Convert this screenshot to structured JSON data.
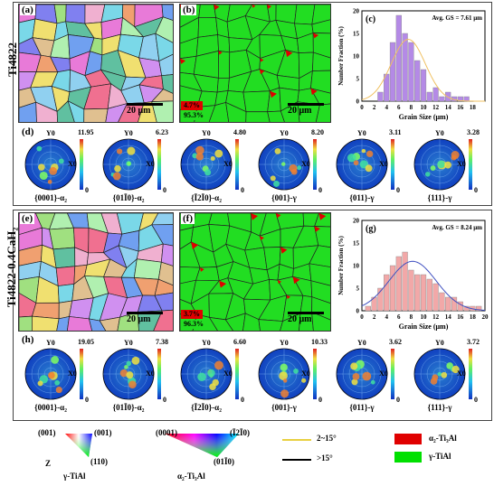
{
  "rows": [
    {
      "sample": "Ti4822",
      "panel_ipf": "(a)",
      "panel_phase": "(b)",
      "panel_hist": "(c)",
      "panel_poles": "(d)",
      "ipf_scale": "20 μm",
      "phase_scale": "20 μm",
      "alpha_fraction": "4.7%",
      "gamma_fraction": "95.3%",
      "hist_annot": "Avg. GS = 7.61 μm",
      "poles": [
        {
          "title": "{0001}-α₂",
          "max": "11.95",
          "min": "0"
        },
        {
          "title": "{01Ī0}-α₂",
          "max": "6.23",
          "min": "0"
        },
        {
          "title": "{Ī2Ī0}-α₂",
          "max": "4.80",
          "min": "0"
        },
        {
          "title": "{001}-γ",
          "max": "8.20",
          "min": "0"
        },
        {
          "title": "{011}-γ",
          "max": "3.11",
          "min": "0"
        },
        {
          "title": "{111}-γ",
          "max": "3.28",
          "min": "0"
        }
      ]
    },
    {
      "sample": "Ti4822-0.4CaH₂",
      "panel_ipf": "(e)",
      "panel_phase": "(f)",
      "panel_hist": "(g)",
      "panel_poles": "(h)",
      "ipf_scale": "20 μm",
      "phase_scale": "20 μm",
      "alpha_fraction": "3.7%",
      "gamma_fraction": "96.3%",
      "hist_annot": "Avg. GS = 8.24 μm",
      "poles": [
        {
          "title": "{0001}-α₂",
          "max": "19.05",
          "min": "0"
        },
        {
          "title": "{01Ī0}-α₂",
          "max": "7.38",
          "min": "0"
        },
        {
          "title": "{Ī2Ī0}-α₂",
          "max": "6.60",
          "min": "0"
        },
        {
          "title": "{001}-γ",
          "max": "10.33",
          "min": "0"
        },
        {
          "title": "{011}-γ",
          "max": "3.62",
          "min": "0"
        },
        {
          "title": "{111}-γ",
          "max": "3.72",
          "min": "0"
        }
      ]
    }
  ],
  "pole_axis": {
    "y": "Y0",
    "x": "X0"
  },
  "chart_data": [
    {
      "type": "bar",
      "title": "",
      "xlabel": "Grain Size (μm)",
      "ylabel": "Number Fraction (%)",
      "xlim": [
        0,
        20
      ],
      "ylim": [
        0,
        20
      ],
      "xticks": [
        0,
        2,
        4,
        6,
        8,
        10,
        12,
        14,
        16,
        18
      ],
      "yticks": [
        0,
        5,
        10,
        15,
        20
      ],
      "bin_width": 1,
      "x": [
        3,
        4,
        5,
        6,
        7,
        8,
        9,
        10,
        11,
        12,
        13,
        14,
        15,
        16,
        17
      ],
      "values": [
        2,
        6,
        13,
        19,
        15,
        13,
        9,
        7,
        2,
        3,
        1,
        2,
        1,
        1,
        1
      ],
      "fit": "gaussian",
      "bar_color": "#b48ae6",
      "fit_color": "#f0c060"
    },
    {
      "type": "bar",
      "title": "",
      "xlabel": "Grain Size (μm)",
      "ylabel": "Number Fraction (%)",
      "xlim": [
        0,
        20
      ],
      "ylim": [
        0,
        20
      ],
      "xticks": [
        0,
        2,
        4,
        6,
        8,
        10,
        12,
        14,
        16,
        18,
        20
      ],
      "yticks": [
        0,
        5,
        10,
        15,
        20
      ],
      "bin_width": 1,
      "x": [
        1,
        2,
        3,
        4,
        5,
        6,
        7,
        8,
        9,
        10,
        11,
        12,
        13,
        14,
        15,
        16,
        17,
        18,
        19
      ],
      "values": [
        1,
        3,
        5,
        8,
        10,
        12,
        13,
        9,
        8,
        8,
        7,
        6,
        4,
        3,
        3,
        2,
        1,
        1,
        1
      ],
      "fit": "gaussian",
      "bar_color": "#f2a8a8",
      "fit_color": "#4050c0"
    }
  ],
  "legend": {
    "gamma_ipf": {
      "c1": "(001)",
      "c2": "(001)",
      "c3": "(110)",
      "z": "Z",
      "label": "γ-TiAl"
    },
    "alpha_ipf": {
      "c1": "(0001)",
      "c2": "(Ī2Ī0)",
      "c3": "(01Ī0)",
      "label": "α₂-Ti₃Al"
    },
    "boundaries": [
      {
        "label": "2~15°",
        "color": "#e8d040"
      },
      {
        "label": ">15°",
        "color": "#000000"
      }
    ],
    "phases": [
      {
        "label": "α₂-Ti₃Al",
        "color": "#e00000"
      },
      {
        "label": "γ-TiAl",
        "color": "#00e000"
      }
    ]
  }
}
